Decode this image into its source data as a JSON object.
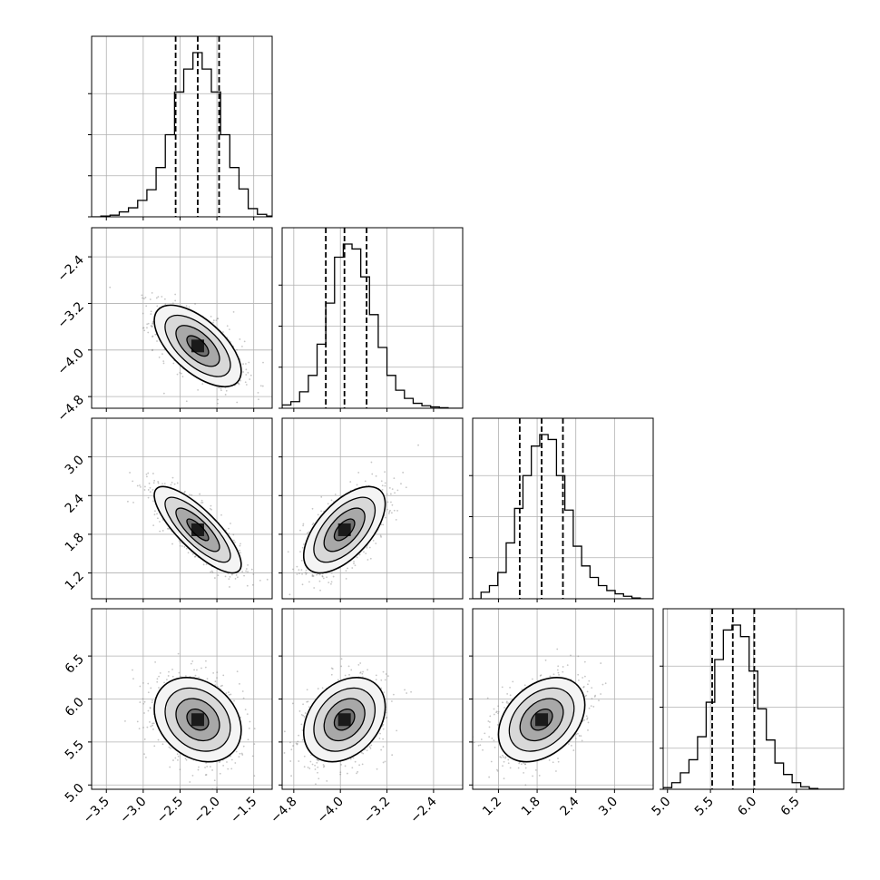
{
  "chart_data": {
    "type": "corner",
    "title": "",
    "params": [
      {
        "range": [
          -3.7,
          -1.25
        ],
        "ticks": [
          {
            "value": -3.5,
            "label": "−3.5"
          },
          {
            "value": -3.0,
            "label": "−3.0"
          },
          {
            "value": -2.5,
            "label": "−2.5"
          },
          {
            "value": -2.0,
            "label": "−2.0"
          },
          {
            "value": -1.5,
            "label": "−1.5"
          }
        ],
        "quantiles": [
          -2.56,
          -2.26,
          -1.97
        ],
        "hist": {
          "edges": [
            -3.7,
            -3.575,
            -3.45,
            -3.325,
            -3.2,
            -3.075,
            -2.95,
            -2.825,
            -2.7,
            -2.575,
            -2.45,
            -2.325,
            -2.2,
            -2.075,
            -1.95,
            -1.825,
            -1.7,
            -1.575,
            -1.45,
            -1.325,
            -1.25
          ],
          "counts": [
            0,
            0.005,
            0.01,
            0.03,
            0.055,
            0.1,
            0.165,
            0.3,
            0.5,
            0.76,
            0.9,
            1.0,
            0.9,
            0.76,
            0.5,
            0.3,
            0.17,
            0.05,
            0.015,
            0.005
          ]
        }
      },
      {
        "range": [
          -5.0,
          -1.9
        ],
        "ticks": [
          {
            "value": -4.8,
            "label": "−4.8"
          },
          {
            "value": -4.0,
            "label": "−4.0"
          },
          {
            "value": -3.2,
            "label": "−3.2"
          },
          {
            "value": -2.4,
            "label": "−2.4"
          }
        ],
        "quantiles": [
          -4.25,
          -3.93,
          -3.55
        ],
        "hist": {
          "edges": [
            -5.0,
            -4.85,
            -4.7,
            -4.55,
            -4.4,
            -4.25,
            -4.1,
            -3.95,
            -3.8,
            -3.65,
            -3.5,
            -3.35,
            -3.2,
            -3.05,
            -2.9,
            -2.75,
            -2.6,
            -2.45,
            -2.3,
            -2.15,
            -2.0,
            -1.9
          ],
          "counts": [
            0.02,
            0.04,
            0.1,
            0.2,
            0.39,
            0.64,
            0.92,
            1.0,
            0.97,
            0.8,
            0.57,
            0.37,
            0.2,
            0.11,
            0.06,
            0.03,
            0.015,
            0.008,
            0.003,
            0.0,
            0.0
          ]
        }
      },
      {
        "range": [
          0.8,
          3.6
        ],
        "ticks": [
          {
            "value": 1.2,
            "label": "1.2"
          },
          {
            "value": 1.8,
            "label": "1.8"
          },
          {
            "value": 2.4,
            "label": "2.4"
          },
          {
            "value": 3.0,
            "label": "3.0"
          }
        ],
        "quantiles": [
          1.53,
          1.87,
          2.2
        ],
        "hist": {
          "edges": [
            0.8,
            0.93,
            1.06,
            1.19,
            1.32,
            1.45,
            1.58,
            1.71,
            1.84,
            1.97,
            2.1,
            2.23,
            2.36,
            2.49,
            2.62,
            2.75,
            2.88,
            3.01,
            3.14,
            3.27,
            3.4,
            3.6
          ],
          "counts": [
            0.0,
            0.04,
            0.08,
            0.16,
            0.34,
            0.55,
            0.75,
            0.93,
            1.0,
            0.97,
            0.75,
            0.54,
            0.32,
            0.2,
            0.13,
            0.08,
            0.05,
            0.03,
            0.015,
            0.005,
            0.0
          ]
        }
      },
      {
        "range": [
          4.95,
          7.05
        ],
        "ticks": [
          {
            "value": 5.0,
            "label": "5.0"
          },
          {
            "value": 5.5,
            "label": "5.5"
          },
          {
            "value": 6.0,
            "label": "6.0"
          },
          {
            "value": 6.5,
            "label": "6.5"
          }
        ],
        "quantiles": [
          5.52,
          5.76,
          6.01
        ],
        "hist": {
          "edges": [
            4.95,
            5.05,
            5.15,
            5.25,
            5.35,
            5.45,
            5.55,
            5.65,
            5.75,
            5.85,
            5.95,
            6.05,
            6.15,
            6.25,
            6.35,
            6.45,
            6.55,
            6.65,
            6.75,
            6.85,
            6.95,
            7.05
          ],
          "counts": [
            0.01,
            0.04,
            0.1,
            0.18,
            0.32,
            0.53,
            0.79,
            0.97,
            1.0,
            0.93,
            0.72,
            0.49,
            0.3,
            0.16,
            0.09,
            0.04,
            0.015,
            0.005,
            0.0,
            0.0,
            0.0
          ]
        }
      }
    ],
    "correlations": [
      {
        "pair": [
          0,
          1
        ],
        "rho": -0.62
      },
      {
        "pair": [
          0,
          2
        ],
        "rho": -0.8
      },
      {
        "pair": [
          1,
          2
        ],
        "rho": 0.6
      },
      {
        "pair": [
          0,
          3
        ],
        "rho": -0.25
      },
      {
        "pair": [
          1,
          3
        ],
        "rho": 0.3
      },
      {
        "pair": [
          2,
          3
        ],
        "rho": 0.35
      }
    ],
    "contour_levels_sigma": [
      0.5,
      1.0,
      1.5,
      2.0
    ],
    "grid": true,
    "colors": {
      "line": "#000000",
      "grid": "#b0b0b0",
      "scatter": "#808080"
    }
  }
}
